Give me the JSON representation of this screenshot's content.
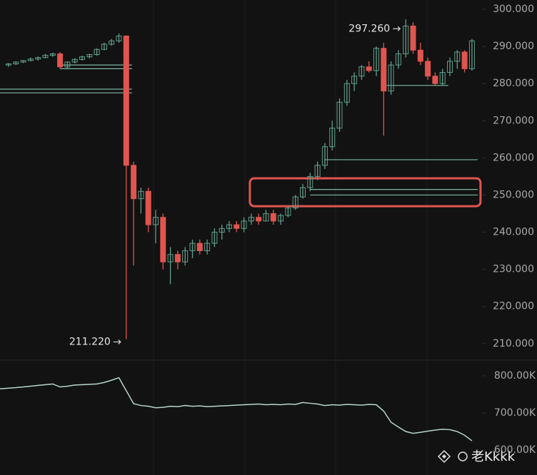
{
  "chart_data": [
    {
      "type": "candlestick",
      "series": [
        {
          "name": null,
          "up_color": "#5e9f8b",
          "down_color": "#e0554f",
          "open": [
            285,
            285.3,
            285.8,
            286.2,
            286.6,
            287,
            287.6,
            288,
            284.5,
            285.8,
            286.5,
            287.2,
            287.8,
            289.2,
            290.6,
            291.5,
            292.8,
            258,
            249,
            251,
            242,
            244,
            232,
            234,
            232,
            235,
            237,
            235,
            237,
            240,
            241,
            242,
            241,
            243,
            244,
            243,
            245,
            243,
            244.5,
            246.5,
            249.5,
            252,
            255,
            258,
            263,
            268,
            275,
            280,
            282,
            284.5,
            283.5,
            289.5,
            278,
            285,
            288,
            295.5,
            289,
            286,
            282,
            280,
            283,
            286,
            288.5,
            284
          ],
          "high": [
            285.5,
            286,
            286.3,
            287,
            287.3,
            288,
            288.3,
            288.5,
            286,
            286.8,
            287.5,
            288,
            289.5,
            291,
            292,
            293.5,
            293,
            259,
            252,
            252,
            246,
            245,
            236,
            235,
            236,
            238,
            238,
            238,
            241,
            242,
            243,
            243,
            244,
            245,
            245,
            246,
            246,
            245,
            247,
            250,
            253,
            256,
            259,
            264,
            270,
            276,
            281,
            283,
            285,
            286,
            290,
            291,
            286,
            289,
            297.26,
            296.5,
            291,
            287,
            283,
            284,
            287,
            289,
            289,
            292
          ],
          "low": [
            284.5,
            285,
            285.5,
            286,
            286.2,
            286.8,
            287.2,
            284,
            284,
            285.4,
            286.2,
            286.8,
            287.5,
            289,
            290.2,
            291,
            211.22,
            231,
            245,
            240,
            237,
            230,
            226,
            230,
            231,
            233,
            234,
            234,
            236,
            238,
            240,
            240,
            240,
            242,
            242,
            243,
            242,
            242,
            244,
            246,
            249,
            251,
            254,
            257,
            262,
            267,
            274,
            278,
            281,
            283,
            282,
            266,
            277,
            284,
            287,
            288,
            285,
            281,
            279.5,
            279.5,
            282,
            284,
            283,
            283.5
          ],
          "close": [
            285.3,
            285.8,
            286.2,
            286.6,
            287,
            287.6,
            288,
            284.5,
            285.8,
            286.5,
            287.2,
            287.8,
            289.2,
            290.6,
            291.5,
            292.8,
            258,
            249,
            251,
            242,
            244,
            232,
            234,
            232,
            235,
            237,
            235,
            237,
            240,
            241,
            242,
            241,
            243,
            244,
            243,
            245,
            243,
            244.5,
            246.5,
            249.5,
            252,
            255,
            258,
            263,
            268,
            275,
            280,
            282,
            284.5,
            283.5,
            289.5,
            278,
            285,
            288,
            295.5,
            289,
            286,
            282,
            280,
            283,
            286,
            288.5,
            284,
            291.5
          ]
        }
      ],
      "ylim": [
        206.5,
        302.5
      ],
      "yticks": [
        {
          "value": 300,
          "label": "300.000"
        },
        {
          "value": 290,
          "label": "290.000"
        },
        {
          "value": 280,
          "label": "280.000"
        },
        {
          "value": 270,
          "label": "270.000"
        },
        {
          "value": 260,
          "label": "260.000"
        },
        {
          "value": 250,
          "label": "250.000"
        },
        {
          "value": 240,
          "label": "240.000"
        },
        {
          "value": 230,
          "label": "230.000"
        },
        {
          "value": 220,
          "label": "220.000"
        },
        {
          "value": 210,
          "label": "210.000"
        }
      ],
      "levels": [
        {
          "price": 259.5,
          "from": 43,
          "to": 63
        },
        {
          "price": 251.5,
          "from": 41,
          "to": 63
        },
        {
          "price": 250,
          "from": 41,
          "to": 63
        },
        {
          "price": 279.5,
          "from": 51,
          "to": 59
        },
        {
          "price": 285,
          "from": 7,
          "to": 16
        },
        {
          "price": 284,
          "from": 7,
          "to": 16
        },
        {
          "price": 278.5,
          "from": 0,
          "to": 16
        },
        {
          "price": 277.5,
          "from": 0,
          "to": 16
        }
      ],
      "level_color": "#7fb7a4",
      "highlight": {
        "ylim": [
          247,
          254.5
        ],
        "from": 33,
        "to": 63,
        "color": "#e0554f"
      },
      "annotations": [
        {
          "text": "297.260",
          "value": 297.26,
          "index": 54
        },
        {
          "text": "211.220",
          "value": 211.22,
          "index": 16
        }
      ]
    },
    {
      "type": "line",
      "series": [
        {
          "name": null,
          "color": "#b9d4cb",
          "values": [
            765000,
            768000,
            770000,
            772000,
            774000,
            776000,
            778000,
            770000,
            772000,
            775000,
            776000,
            777000,
            778000,
            782000,
            788000,
            795000,
            760000,
            725000,
            720000,
            718000,
            714000,
            715000,
            718000,
            717000,
            720000,
            718000,
            719000,
            717000,
            718000,
            719000,
            720000,
            721000,
            722000,
            723000,
            724000,
            722000,
            723000,
            722000,
            724000,
            723000,
            728000,
            726000,
            724000,
            720000,
            722000,
            721000,
            723000,
            722000,
            721000,
            723000,
            722000,
            705000,
            675000,
            662000,
            650000,
            645000,
            648000,
            651000,
            654000,
            656000,
            655000,
            650000,
            640000,
            625000
          ]
        }
      ],
      "ylim": [
        533000,
        842000
      ],
      "yticks": [
        {
          "value": 800000,
          "label": "800.00K"
        },
        {
          "value": 700000,
          "label": "700.00K"
        },
        {
          "value": 600000,
          "label": "600.00K"
        }
      ]
    },
    {
      "type": "watermark",
      "text": "老Kkkk"
    }
  ]
}
